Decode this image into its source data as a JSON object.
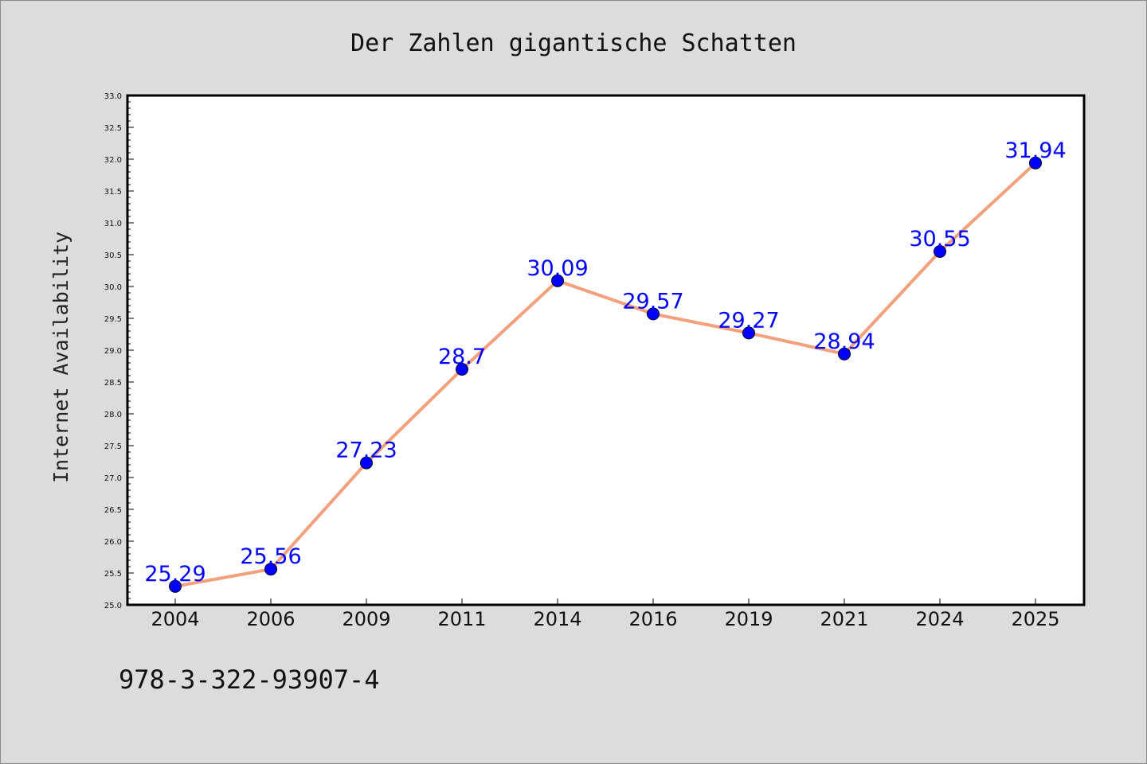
{
  "chart_data": {
    "type": "line",
    "title": "Der Zahlen gigantische Schatten",
    "xlabel": "",
    "ylabel": "Internet Availability",
    "categories": [
      "2004",
      "2006",
      "2009",
      "2011",
      "2014",
      "2016",
      "2019",
      "2021",
      "2024",
      "2025"
    ],
    "series": [
      {
        "values": [
          25.29,
          25.56,
          27.23,
          28.7,
          30.09,
          29.57,
          29.27,
          28.94,
          30.55,
          31.94
        ],
        "labels": [
          "25.29",
          "25.56",
          "27.23",
          "28.7",
          "30.09",
          "29.57",
          "29.27",
          "28.94",
          "30.55",
          "31.94"
        ]
      }
    ],
    "ylim": [
      25.0,
      33.0
    ],
    "yticks": [
      "25.0",
      "25.5",
      "26.0",
      "26.5",
      "27.0",
      "27.5",
      "28.0",
      "28.5",
      "29.0",
      "29.5",
      "30.0",
      "30.5",
      "31.0",
      "31.5",
      "32.0",
      "32.5",
      "33.0"
    ],
    "grid": false,
    "line_color": "#f4a07c",
    "marker_color": "#0000ff",
    "label_color": "#0000ff",
    "background": "#dcdcdc",
    "plot_background": "#ffffff"
  },
  "footer": {
    "text": "978-3-322-93907-4"
  }
}
